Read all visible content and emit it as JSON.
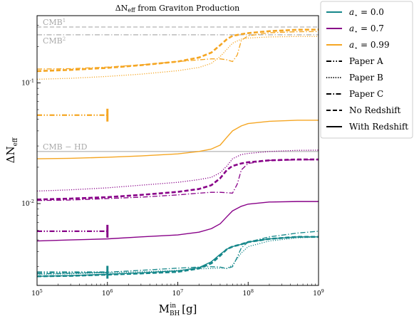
{
  "chart_data": {
    "type": "line",
    "title": "ΔN_eff from Graviton Production",
    "xlabel": "M_BH^in [g]",
    "ylabel": "ΔN_eff",
    "x_scale": "log",
    "y_scale": "log",
    "xlim": [
      100000,
      1000000000
    ],
    "ylim": [
      0.0021,
      0.36
    ],
    "x_ticks": [
      {
        "value": 100000,
        "label": "10^5"
      },
      {
        "value": 1000000,
        "label": "10^6"
      },
      {
        "value": 10000000,
        "label": "10^7"
      },
      {
        "value": 100000000,
        "label": "10^8"
      },
      {
        "value": 1000000000,
        "label": "10^9"
      }
    ],
    "y_ticks": [
      {
        "value": 0.01,
        "label": "10^-2"
      },
      {
        "value": 0.1,
        "label": "10^-1"
      }
    ],
    "reference_lines": [
      {
        "name": "CMB^1",
        "y": 0.29,
        "style": "dashed",
        "color": "#bbbbbb"
      },
      {
        "name": "CMB^2",
        "y": 0.25,
        "style": "dashdot",
        "color": "#bbbbbb"
      },
      {
        "name": "CMB − HD",
        "y": 0.027,
        "style": "solid",
        "color": "#bbbbbb"
      }
    ],
    "colors": {
      "a0": "#15878a",
      "a07": "#880088",
      "a099": "#f5a623"
    },
    "legend": {
      "placement": "outside-right",
      "spin_entries": [
        {
          "label": "a⋆ = 0.0",
          "color_key": "a0"
        },
        {
          "label": "a⋆ = 0.7",
          "color_key": "a07"
        },
        {
          "label": "a⋆ = 0.99",
          "color_key": "a099"
        }
      ],
      "style_entries": [
        {
          "label": "Paper A",
          "style": "dashdotdot"
        },
        {
          "label": "Paper B",
          "style": "dotted"
        },
        {
          "label": "Paper C",
          "style": "dashdot"
        },
        {
          "label": "No Redshift",
          "style": "dashed"
        },
        {
          "label": "With Redshift",
          "style": "solid"
        }
      ]
    },
    "series": [
      {
        "name": "a⋆ = 0.99, Paper A",
        "color_key": "a099",
        "style": "dashdotdot",
        "width": 2.2,
        "x": [
          100000,
          1000000
        ],
        "y": [
          0.054,
          0.054
        ],
        "end_marker": true
      },
      {
        "name": "a⋆ = 0.99, Paper B",
        "color_key": "a099",
        "style": "dotted",
        "width": 1.3,
        "x": [
          100000,
          300000,
          1000000,
          3000000,
          10000000,
          20000000,
          30000000,
          40000000,
          50000000,
          60000000,
          80000000,
          100000000,
          200000000,
          500000000,
          1000000000
        ],
        "y": [
          0.107,
          0.109,
          0.113,
          0.118,
          0.126,
          0.134,
          0.145,
          0.165,
          0.19,
          0.213,
          0.23,
          0.235,
          0.24,
          0.242,
          0.242
        ]
      },
      {
        "name": "a⋆ = 0.99, Paper C",
        "color_key": "a099",
        "style": "dashdot",
        "width": 1.3,
        "x": [
          100000,
          300000,
          1000000,
          3000000,
          10000000,
          20000000,
          30000000,
          40000000,
          50000000,
          60000000,
          70000000,
          80000000,
          100000000,
          200000000,
          500000000,
          1000000000
        ],
        "y": [
          0.13,
          0.131,
          0.135,
          0.141,
          0.15,
          0.155,
          0.158,
          0.158,
          0.155,
          0.15,
          0.17,
          0.225,
          0.245,
          0.26,
          0.265,
          0.266
        ]
      },
      {
        "name": "a⋆ = 0.99, No Redshift",
        "color_key": "a099",
        "style": "dashed",
        "width": 2.6,
        "x": [
          100000,
          300000,
          1000000,
          3000000,
          10000000,
          20000000,
          30000000,
          40000000,
          50000000,
          60000000,
          80000000,
          100000000,
          200000000,
          500000000,
          1000000000
        ],
        "y": [
          0.125,
          0.128,
          0.133,
          0.14,
          0.15,
          0.162,
          0.178,
          0.205,
          0.23,
          0.245,
          0.253,
          0.258,
          0.268,
          0.275,
          0.276
        ]
      },
      {
        "name": "a⋆ = 0.99, With Redshift",
        "color_key": "a099",
        "style": "solid",
        "width": 1.4,
        "x": [
          100000,
          300000,
          1000000,
          3000000,
          10000000,
          20000000,
          30000000,
          40000000,
          50000000,
          60000000,
          80000000,
          100000000,
          200000000,
          500000000,
          1000000000
        ],
        "y": [
          0.0235,
          0.0237,
          0.0242,
          0.0248,
          0.0258,
          0.027,
          0.0283,
          0.0305,
          0.0355,
          0.04,
          0.044,
          0.046,
          0.048,
          0.049,
          0.049
        ]
      },
      {
        "name": "a⋆ = 0.7, Paper A",
        "color_key": "a07",
        "style": "dashdotdot",
        "width": 2.2,
        "x": [
          100000,
          1000000
        ],
        "y": [
          0.0059,
          0.0059
        ],
        "end_marker": true
      },
      {
        "name": "a⋆ = 0.7, Paper B",
        "color_key": "a07",
        "style": "dotted",
        "width": 1.3,
        "x": [
          100000,
          300000,
          1000000,
          3000000,
          10000000,
          20000000,
          30000000,
          40000000,
          50000000,
          60000000,
          80000000,
          100000000,
          200000000,
          500000000,
          1000000000
        ],
        "y": [
          0.0127,
          0.013,
          0.0135,
          0.0142,
          0.015,
          0.0158,
          0.0165,
          0.018,
          0.0205,
          0.0235,
          0.0255,
          0.026,
          0.027,
          0.0276,
          0.0277
        ]
      },
      {
        "name": "a⋆ = 0.7, Paper C",
        "color_key": "a07",
        "style": "dashdot",
        "width": 1.3,
        "x": [
          100000,
          300000,
          1000000,
          3000000,
          10000000,
          20000000,
          30000000,
          40000000,
          50000000,
          60000000,
          70000000,
          80000000,
          100000000,
          200000000,
          500000000,
          1000000000
        ],
        "y": [
          0.0106,
          0.0107,
          0.011,
          0.0113,
          0.0118,
          0.0122,
          0.0124,
          0.0124,
          0.0123,
          0.0122,
          0.0145,
          0.019,
          0.0215,
          0.0228,
          0.023,
          0.0231
        ]
      },
      {
        "name": "a⋆ = 0.7, No Redshift",
        "color_key": "a07",
        "style": "dashed",
        "width": 2.6,
        "x": [
          100000,
          300000,
          1000000,
          3000000,
          10000000,
          20000000,
          30000000,
          40000000,
          50000000,
          60000000,
          80000000,
          100000000,
          200000000,
          500000000,
          1000000000
        ],
        "y": [
          0.0108,
          0.011,
          0.0113,
          0.0118,
          0.0125,
          0.0132,
          0.0142,
          0.0162,
          0.019,
          0.0205,
          0.0215,
          0.022,
          0.0228,
          0.0232,
          0.0232
        ]
      },
      {
        "name": "a⋆ = 0.7, With Redshift",
        "color_key": "a07",
        "style": "solid",
        "width": 1.4,
        "x": [
          100000,
          300000,
          1000000,
          3000000,
          10000000,
          20000000,
          30000000,
          40000000,
          50000000,
          60000000,
          80000000,
          100000000,
          200000000,
          500000000,
          1000000000
        ],
        "y": [
          0.0049,
          0.005,
          0.0051,
          0.0053,
          0.0055,
          0.0058,
          0.0062,
          0.0068,
          0.0078,
          0.0087,
          0.0095,
          0.0099,
          0.0103,
          0.0104,
          0.0104
        ]
      },
      {
        "name": "a⋆ = 0.0, Paper A",
        "color_key": "a0",
        "style": "dashdotdot",
        "width": 2.2,
        "x": [
          100000,
          1000000
        ],
        "y": [
          0.0027,
          0.0027
        ],
        "end_marker": true
      },
      {
        "name": "a⋆ = 0.0, Paper B",
        "color_key": "a0",
        "style": "dotted",
        "width": 1.3,
        "x": [
          100000,
          300000,
          1000000,
          3000000,
          10000000,
          20000000,
          30000000,
          40000000,
          50000000,
          60000000,
          80000000,
          100000000,
          200000000,
          500000000,
          1000000000
        ],
        "y": [
          0.0026,
          0.00262,
          0.00268,
          0.00272,
          0.0028,
          0.00288,
          0.0029,
          0.00292,
          0.0029,
          0.0031,
          0.0039,
          0.0044,
          0.0049,
          0.0052,
          0.0053
        ]
      },
      {
        "name": "a⋆ = 0.0, Paper C",
        "color_key": "a0",
        "style": "dashdot",
        "width": 1.3,
        "x": [
          100000,
          300000,
          1000000,
          3000000,
          10000000,
          20000000,
          30000000,
          40000000,
          50000000,
          60000000,
          70000000,
          80000000,
          100000000,
          200000000,
          500000000,
          1000000000
        ],
        "y": [
          0.00262,
          0.00265,
          0.0027,
          0.0028,
          0.00292,
          0.00298,
          0.003,
          0.00298,
          0.0029,
          0.003,
          0.0036,
          0.0043,
          0.0048,
          0.0053,
          0.0057,
          0.0059
        ]
      },
      {
        "name": "a⋆ = 0.0, No Redshift",
        "color_key": "a0",
        "style": "dashed",
        "width": 2.6,
        "x": [
          100000,
          300000,
          1000000,
          3000000,
          10000000,
          20000000,
          30000000,
          40000000,
          50000000,
          60000000,
          80000000,
          100000000,
          200000000,
          500000000,
          1000000000
        ],
        "y": [
          0.0025,
          0.00252,
          0.00258,
          0.00264,
          0.00272,
          0.0029,
          0.0032,
          0.0037,
          0.0042,
          0.0044,
          0.0046,
          0.0048,
          0.0051,
          0.0053,
          0.0053
        ]
      },
      {
        "name": "a⋆ = 0.0, With Redshift",
        "color_key": "a0",
        "style": "solid",
        "width": 1.4,
        "x": [
          100000,
          300000,
          1000000,
          3000000,
          10000000,
          20000000,
          30000000,
          40000000,
          50000000,
          60000000,
          80000000,
          100000000,
          200000000,
          500000000,
          1000000000
        ],
        "y": [
          0.0025,
          0.00253,
          0.0026,
          0.00267,
          0.00277,
          0.00295,
          0.0033,
          0.0038,
          0.0042,
          0.0044,
          0.0046,
          0.0048,
          0.0051,
          0.0053,
          0.0053
        ]
      }
    ]
  }
}
